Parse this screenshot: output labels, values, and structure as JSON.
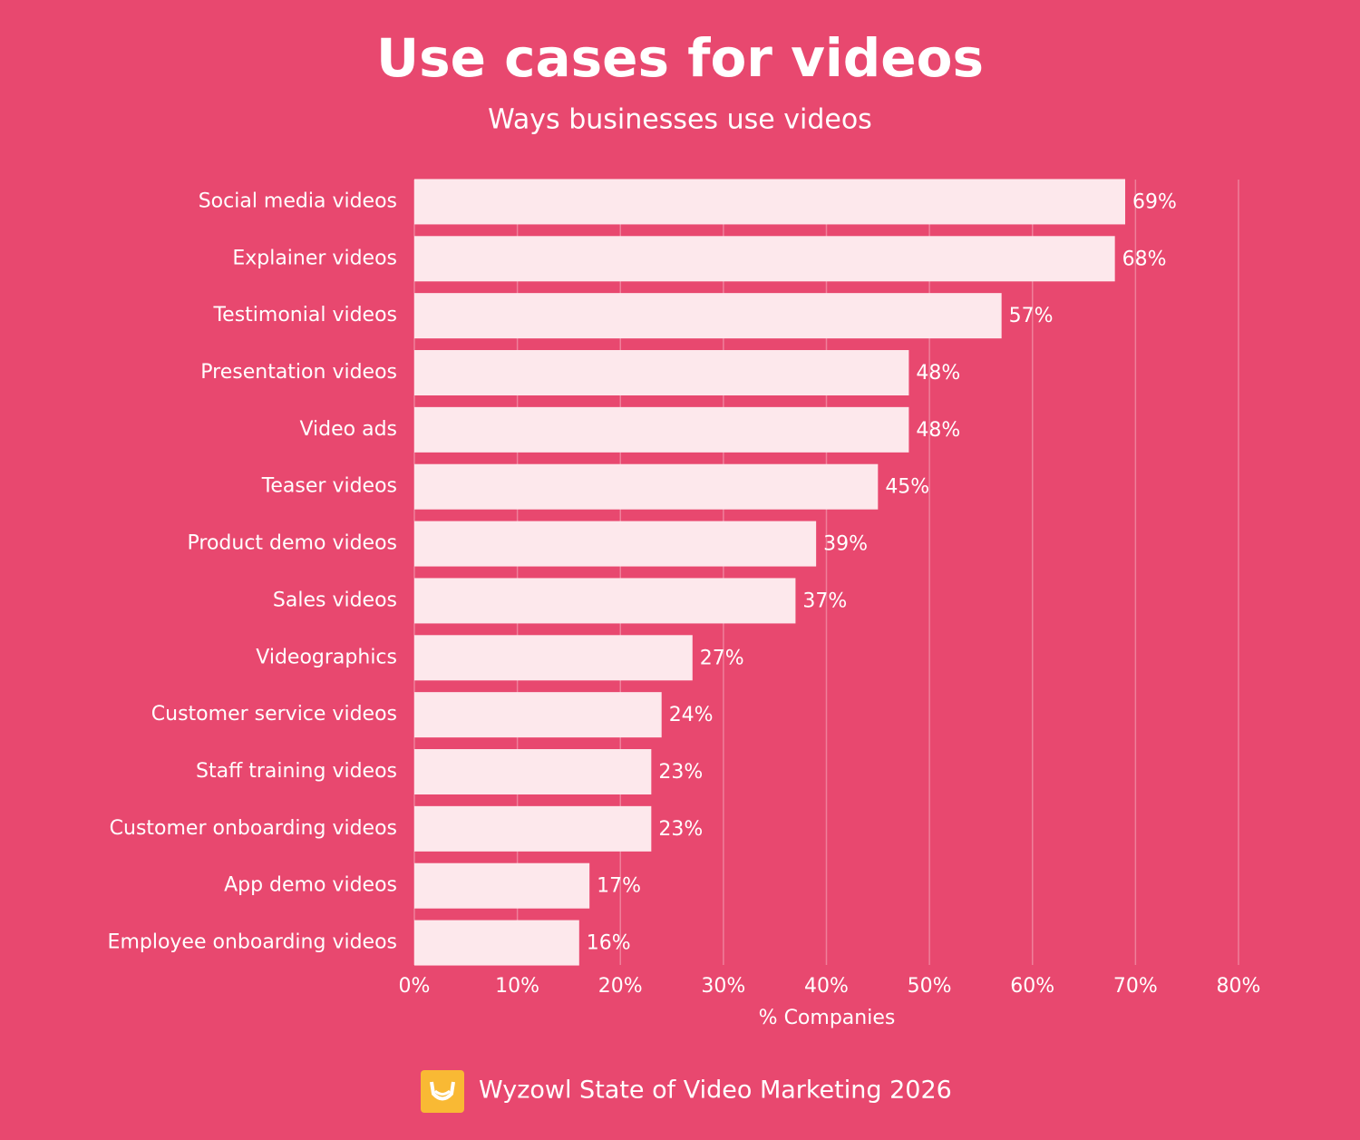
{
  "chart_data": {
    "type": "bar",
    "title": "Use cases for videos",
    "subtitle": "Ways businesses use videos",
    "categories": [
      "Social media videos",
      "Explainer videos",
      "Testimonial videos",
      "Presentation videos",
      "Video ads",
      "Teaser videos",
      "Product demo videos",
      "Sales videos",
      "Videographics",
      "Customer service videos",
      "Staff training videos",
      "Customer onboarding videos",
      "App demo videos",
      "Employee onboarding videos"
    ],
    "values": [
      69,
      68,
      57,
      48,
      48,
      45,
      39,
      37,
      27,
      24,
      23,
      23,
      17,
      16
    ],
    "value_labels": [
      "69%",
      "68%",
      "57%",
      "48%",
      "48%",
      "45%",
      "39%",
      "37%",
      "27%",
      "24%",
      "23%",
      "23%",
      "17%",
      "16%"
    ],
    "color": "#fde8ec",
    "xlabel": "% Companies",
    "xlim": [
      0,
      80
    ],
    "xticks": [
      {
        "value": 0,
        "label": "0%"
      },
      {
        "value": 10,
        "label": "10%"
      },
      {
        "value": 20,
        "label": "20%"
      },
      {
        "value": 30,
        "label": "30%"
      },
      {
        "value": 40,
        "label": "40%"
      },
      {
        "value": 50,
        "label": "50%"
      },
      {
        "value": 60,
        "label": "60%"
      },
      {
        "value": 70,
        "label": "70%"
      },
      {
        "value": 80,
        "label": "80%"
      }
    ],
    "grid": true,
    "source": "Wyzowl State of Video Marketing 2026"
  }
}
